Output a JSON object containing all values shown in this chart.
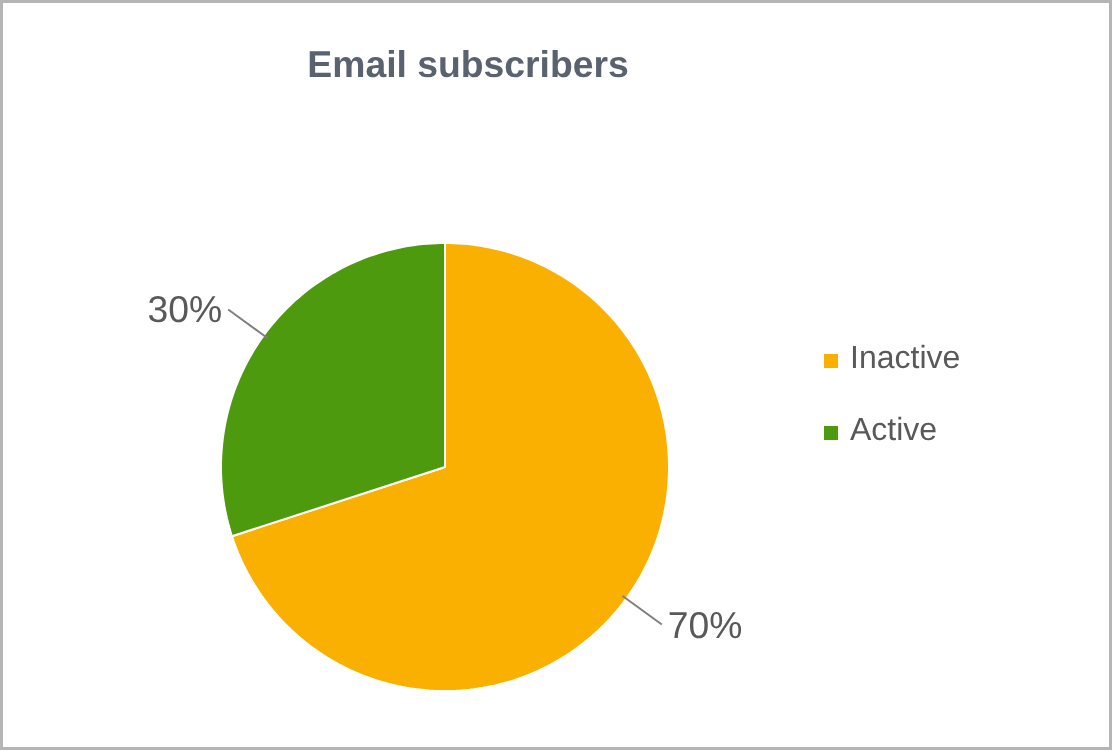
{
  "chart_data": {
    "type": "pie",
    "title": "Email subscribers",
    "categories": [
      "Inactive",
      "Active"
    ],
    "values": [
      70,
      30
    ],
    "colors": [
      "#f9b000",
      "#4e9a0f"
    ],
    "value_labels": [
      "70%",
      "30%"
    ],
    "legend": "right"
  }
}
